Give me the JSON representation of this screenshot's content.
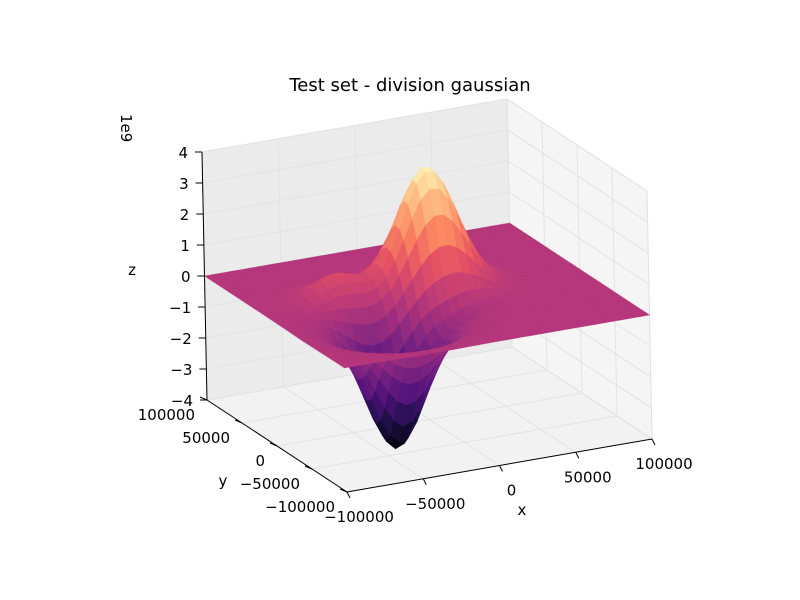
{
  "chart_data": {
    "type": "surface3d",
    "title": "Test set - division gaussian",
    "xlabel": "x",
    "ylabel": "y",
    "zlabel": "z",
    "z_offset_label": "1e9",
    "z_scale": 1000000000,
    "xlim": [
      -100000,
      100000
    ],
    "ylim": [
      -100000,
      100000
    ],
    "zlim": [
      -4,
      4
    ],
    "x_ticks": [
      -100000,
      -50000,
      0,
      50000,
      100000
    ],
    "y_ticks": [
      -100000,
      -50000,
      0,
      50000,
      100000
    ],
    "z_ticks": [
      -4,
      -3,
      -2,
      -1,
      0,
      1,
      2,
      3,
      4
    ],
    "x_tick_labels": [
      "−100000",
      "−50000",
      "0",
      "50000",
      "100000"
    ],
    "y_tick_labels": [
      "−100000",
      "−50000",
      "0",
      "50000",
      "100000"
    ],
    "z_tick_labels": [
      "−4",
      "−3",
      "−2",
      "−1",
      "0",
      "1",
      "2",
      "3",
      "4"
    ],
    "colormap": "magma",
    "grid": true,
    "legend": "none",
    "surface_peaks": [
      {
        "kind": "maximum",
        "x": 8000,
        "y": 15000,
        "z": 3.9,
        "width": 18000
      },
      {
        "kind": "minimum",
        "x": -40000,
        "y": -40000,
        "z": -4.0,
        "width": 18000
      },
      {
        "kind": "maximum",
        "x": -50000,
        "y": 20000,
        "z": 0.8,
        "width": 14000
      },
      {
        "kind": "minimum",
        "x": 5000,
        "y": -20000,
        "z": -0.6,
        "width": 14000
      }
    ]
  }
}
